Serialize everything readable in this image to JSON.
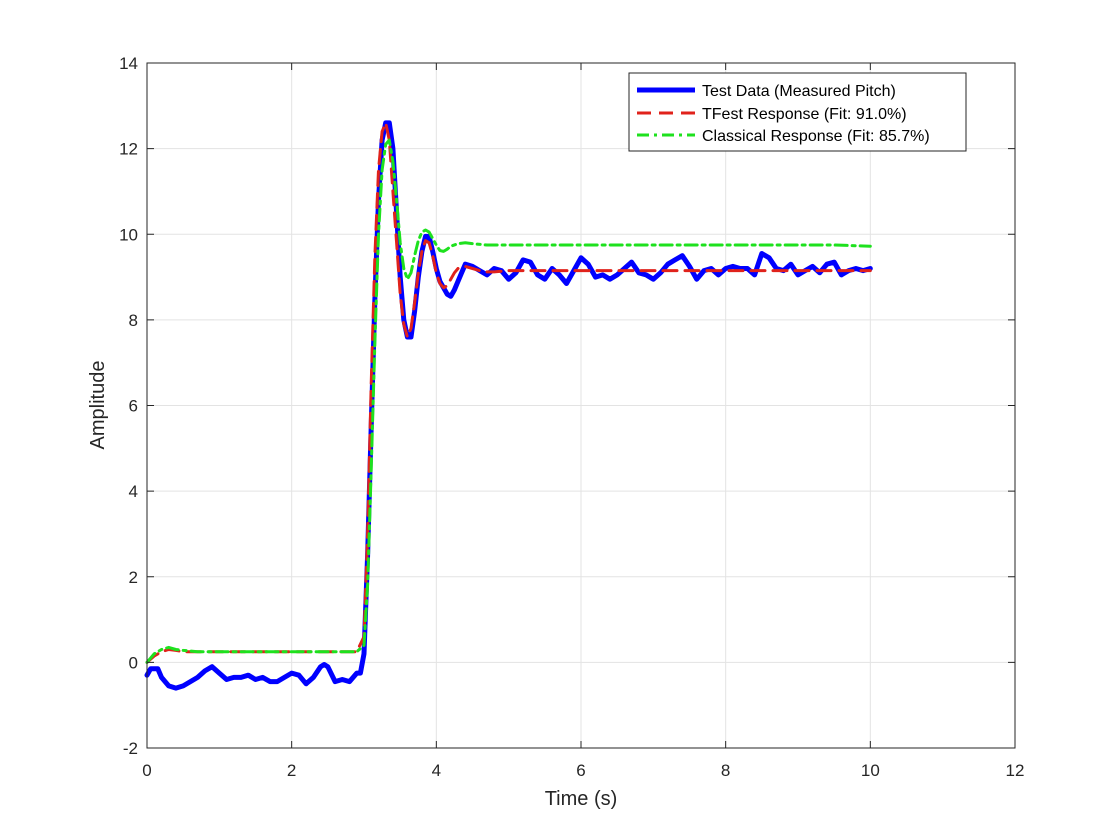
{
  "chart_data": {
    "type": "line",
    "title": "",
    "xlabel": "Time (s)",
    "ylabel": "Amplitude",
    "xlim": [
      0,
      12
    ],
    "ylim": [
      -2,
      14
    ],
    "xticks": [
      0,
      2,
      4,
      6,
      8,
      10,
      12
    ],
    "yticks": [
      -2,
      0,
      2,
      4,
      6,
      8,
      10,
      12,
      14
    ],
    "xtick_labels": [
      "0",
      "2",
      "4",
      "6",
      "8",
      "10",
      "12"
    ],
    "ytick_labels": [
      "-2",
      "0",
      "2",
      "4",
      "6",
      "8",
      "10",
      "12",
      "14"
    ],
    "grid": true,
    "box": true,
    "legend_position": "top-right",
    "series": [
      {
        "name": "Test Data (Measured Pitch)",
        "color": "#0000ff",
        "style": "solid",
        "x": [
          0,
          0.05,
          0.1,
          0.15,
          0.2,
          0.3,
          0.4,
          0.5,
          0.6,
          0.7,
          0.8,
          0.9,
          1.0,
          1.1,
          1.2,
          1.3,
          1.4,
          1.5,
          1.6,
          1.7,
          1.8,
          1.9,
          2.0,
          2.1,
          2.2,
          2.3,
          2.4,
          2.45,
          2.5,
          2.6,
          2.7,
          2.8,
          2.9,
          2.95,
          3.0,
          3.05,
          3.1,
          3.15,
          3.2,
          3.25,
          3.3,
          3.35,
          3.4,
          3.45,
          3.5,
          3.55,
          3.6,
          3.65,
          3.7,
          3.75,
          3.8,
          3.85,
          3.9,
          3.95,
          4.0,
          4.05,
          4.1,
          4.15,
          4.2,
          4.25,
          4.3,
          4.35,
          4.4,
          4.5,
          4.6,
          4.7,
          4.8,
          4.9,
          5.0,
          5.1,
          5.2,
          5.3,
          5.4,
          5.5,
          5.6,
          5.7,
          5.8,
          5.9,
          6.0,
          6.1,
          6.2,
          6.3,
          6.4,
          6.5,
          6.6,
          6.7,
          6.8,
          6.9,
          7.0,
          7.1,
          7.2,
          7.3,
          7.4,
          7.5,
          7.6,
          7.7,
          7.8,
          7.9,
          8.0,
          8.1,
          8.2,
          8.3,
          8.4,
          8.5,
          8.6,
          8.7,
          8.8,
          8.9,
          9.0,
          9.1,
          9.2,
          9.3,
          9.4,
          9.5,
          9.6,
          9.7,
          9.8,
          9.9,
          10.0
        ],
        "y": [
          -0.3,
          -0.15,
          -0.15,
          -0.15,
          -0.35,
          -0.55,
          -0.6,
          -0.55,
          -0.45,
          -0.35,
          -0.2,
          -0.1,
          -0.25,
          -0.4,
          -0.35,
          -0.35,
          -0.3,
          -0.4,
          -0.35,
          -0.45,
          -0.45,
          -0.35,
          -0.25,
          -0.3,
          -0.5,
          -0.35,
          -0.1,
          -0.05,
          -0.1,
          -0.45,
          -0.4,
          -0.45,
          -0.25,
          -0.25,
          0.2,
          2.5,
          5.5,
          8.5,
          10.8,
          12.2,
          12.6,
          12.6,
          12.0,
          10.5,
          9.0,
          8.0,
          7.6,
          7.6,
          8.2,
          9.0,
          9.6,
          9.95,
          9.95,
          9.6,
          9.2,
          8.9,
          8.75,
          8.6,
          8.55,
          8.7,
          8.9,
          9.1,
          9.3,
          9.25,
          9.15,
          9.05,
          9.2,
          9.15,
          8.95,
          9.1,
          9.4,
          9.35,
          9.05,
          8.95,
          9.2,
          9.05,
          8.85,
          9.15,
          9.45,
          9.3,
          9.0,
          9.05,
          8.95,
          9.05,
          9.2,
          9.35,
          9.1,
          9.05,
          8.95,
          9.1,
          9.3,
          9.4,
          9.5,
          9.25,
          8.95,
          9.15,
          9.2,
          9.05,
          9.2,
          9.25,
          9.2,
          9.2,
          9.05,
          9.55,
          9.45,
          9.2,
          9.15,
          9.3,
          9.05,
          9.15,
          9.25,
          9.1,
          9.3,
          9.35,
          9.05,
          9.15,
          9.2,
          9.15,
          9.2
        ]
      },
      {
        "name": "TFest Response (Fit: 91.0%)",
        "color": "#e0221b",
        "style": "dashed",
        "x": [
          0,
          0.1,
          0.2,
          0.3,
          0.4,
          0.5,
          0.7,
          1.0,
          1.5,
          2.0,
          2.5,
          2.9,
          3.0,
          3.05,
          3.1,
          3.15,
          3.2,
          3.25,
          3.3,
          3.35,
          3.4,
          3.45,
          3.5,
          3.55,
          3.6,
          3.65,
          3.7,
          3.75,
          3.8,
          3.85,
          3.9,
          3.95,
          4.0,
          4.05,
          4.1,
          4.15,
          4.2,
          4.25,
          4.3,
          4.4,
          4.5,
          4.6,
          4.7,
          4.8,
          5.0,
          5.5,
          6.0,
          6.5,
          7.0,
          7.5,
          8.0,
          8.5,
          9.0,
          9.5,
          10.0
        ],
        "y": [
          0.0,
          0.15,
          0.25,
          0.3,
          0.28,
          0.25,
          0.25,
          0.25,
          0.25,
          0.25,
          0.25,
          0.25,
          0.6,
          3.0,
          6.5,
          9.5,
          11.5,
          12.4,
          12.6,
          12.2,
          11.0,
          9.8,
          8.6,
          7.9,
          7.6,
          7.8,
          8.4,
          9.1,
          9.6,
          9.85,
          9.8,
          9.5,
          9.1,
          8.85,
          8.75,
          8.8,
          8.95,
          9.1,
          9.2,
          9.25,
          9.2,
          9.15,
          9.12,
          9.12,
          9.15,
          9.15,
          9.15,
          9.15,
          9.15,
          9.15,
          9.15,
          9.15,
          9.15,
          9.15,
          9.15
        ]
      },
      {
        "name": "Classical Response (Fit: 85.7%)",
        "color": "#1ee11e",
        "style": "dashdot",
        "x": [
          0,
          0.1,
          0.2,
          0.3,
          0.4,
          0.5,
          0.7,
          1.0,
          1.5,
          2.0,
          2.5,
          2.9,
          3.0,
          3.05,
          3.1,
          3.15,
          3.2,
          3.25,
          3.3,
          3.35,
          3.4,
          3.45,
          3.5,
          3.55,
          3.6,
          3.65,
          3.7,
          3.75,
          3.8,
          3.85,
          3.9,
          3.95,
          4.0,
          4.05,
          4.1,
          4.15,
          4.2,
          4.3,
          4.4,
          4.5,
          4.7,
          5.0,
          5.5,
          6.0,
          6.5,
          7.0,
          7.5,
          8.0,
          8.5,
          9.0,
          9.5,
          10.0
        ],
        "y": [
          0.0,
          0.2,
          0.3,
          0.35,
          0.3,
          0.28,
          0.25,
          0.25,
          0.25,
          0.25,
          0.25,
          0.25,
          0.4,
          1.8,
          4.5,
          7.5,
          10.0,
          11.5,
          12.1,
          12.2,
          11.7,
          10.8,
          9.8,
          9.2,
          8.95,
          9.1,
          9.5,
          9.85,
          10.05,
          10.1,
          10.05,
          9.9,
          9.75,
          9.62,
          9.6,
          9.65,
          9.72,
          9.78,
          9.8,
          9.78,
          9.75,
          9.75,
          9.75,
          9.75,
          9.75,
          9.75,
          9.75,
          9.75,
          9.75,
          9.75,
          9.75,
          9.72
        ]
      }
    ]
  }
}
